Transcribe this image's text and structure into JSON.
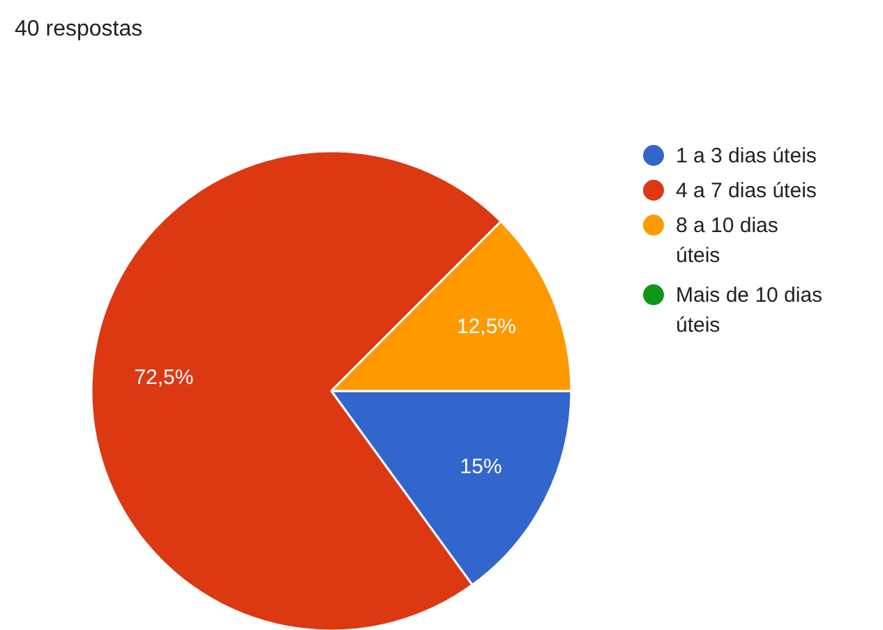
{
  "chart_data": {
    "type": "pie",
    "title": "40 respostas",
    "categories": [
      "1 a 3 dias úteis",
      "4 a 7 dias úteis",
      "8 a 10 dias úteis",
      "Mais de 10 dias úteis"
    ],
    "values": [
      15,
      72.5,
      12.5,
      0
    ],
    "colors": [
      "#3366cc",
      "#dc3912",
      "#ff9900",
      "#109618"
    ],
    "value_labels": [
      "15%",
      "72,5%",
      "12,5%",
      null
    ],
    "legend": "right"
  }
}
